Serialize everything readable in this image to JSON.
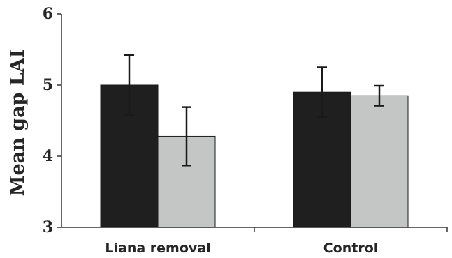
{
  "chart_data": {
    "type": "bar",
    "title": "",
    "xlabel": "",
    "ylabel": "Mean gap LAI",
    "ylim": [
      3,
      6
    ],
    "yticks": [
      3,
      4,
      5,
      6
    ],
    "categories": [
      "Liana removal",
      "Control"
    ],
    "series": [
      {
        "color": "#1f1f1f",
        "values": [
          5.0,
          4.9
        ],
        "errors": [
          0.42,
          0.35
        ]
      },
      {
        "color": "#c4c6c6",
        "values": [
          4.28,
          4.85
        ],
        "errors": [
          0.41,
          0.14
        ]
      }
    ],
    "grid": false,
    "legend": "none"
  }
}
